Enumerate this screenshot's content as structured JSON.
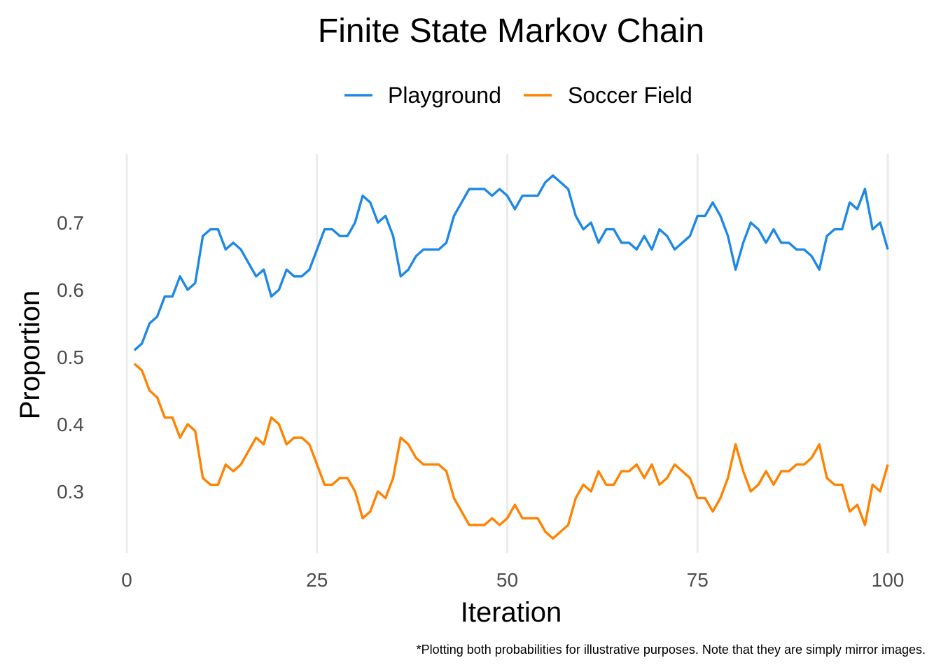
{
  "chart_data": {
    "type": "line",
    "title": "Finite State Markov Chain",
    "xlabel": "Iteration",
    "ylabel": "Proportion",
    "caption": "*Plotting both probabilities for illustrative purposes. Note that they are simply mirror images.",
    "xlim": [
      0,
      100
    ],
    "ylim": [
      0.21,
      0.79
    ],
    "xticks": [
      0,
      25,
      50,
      75,
      100
    ],
    "yticks": [
      0.3,
      0.4,
      0.5,
      0.6,
      0.7
    ],
    "xtick_labels": [
      "0",
      "25",
      "50",
      "75",
      "100"
    ],
    "ytick_labels": [
      "0.3",
      "0.4",
      "0.5",
      "0.6",
      "0.7"
    ],
    "grid": "vertical major lines",
    "legend_position": "top",
    "x": [
      1,
      2,
      3,
      4,
      5,
      6,
      7,
      8,
      9,
      10,
      11,
      12,
      13,
      14,
      15,
      16,
      17,
      18,
      19,
      20,
      21,
      22,
      23,
      24,
      25,
      26,
      27,
      28,
      29,
      30,
      31,
      32,
      33,
      34,
      35,
      36,
      37,
      38,
      39,
      40,
      41,
      42,
      43,
      44,
      45,
      46,
      47,
      48,
      49,
      50,
      51,
      52,
      53,
      54,
      55,
      56,
      57,
      58,
      59,
      60,
      61,
      62,
      63,
      64,
      65,
      66,
      67,
      68,
      69,
      70,
      71,
      72,
      73,
      74,
      75,
      76,
      77,
      78,
      79,
      80,
      81,
      82,
      83,
      84,
      85,
      86,
      87,
      88,
      89,
      90,
      91,
      92,
      93,
      94,
      95,
      96,
      97,
      98,
      99,
      100
    ],
    "series": [
      {
        "name": "Playground",
        "color": "#1E88E5",
        "values": [
          0.51,
          0.52,
          0.55,
          0.56,
          0.59,
          0.59,
          0.62,
          0.6,
          0.61,
          0.68,
          0.69,
          0.69,
          0.66,
          0.67,
          0.66,
          0.64,
          0.62,
          0.63,
          0.59,
          0.6,
          0.63,
          0.62,
          0.62,
          0.63,
          0.66,
          0.69,
          0.69,
          0.68,
          0.68,
          0.7,
          0.74,
          0.73,
          0.7,
          0.71,
          0.68,
          0.62,
          0.63,
          0.65,
          0.66,
          0.66,
          0.66,
          0.67,
          0.71,
          0.73,
          0.75,
          0.75,
          0.75,
          0.74,
          0.75,
          0.74,
          0.72,
          0.74,
          0.74,
          0.74,
          0.76,
          0.77,
          0.76,
          0.75,
          0.71,
          0.69,
          0.7,
          0.67,
          0.69,
          0.69,
          0.67,
          0.67,
          0.66,
          0.68,
          0.66,
          0.69,
          0.68,
          0.66,
          0.67,
          0.68,
          0.71,
          0.71,
          0.73,
          0.71,
          0.68,
          0.63,
          0.67,
          0.7,
          0.69,
          0.67,
          0.69,
          0.67,
          0.67,
          0.66,
          0.66,
          0.65,
          0.63,
          0.68,
          0.69,
          0.69,
          0.73,
          0.72,
          0.75,
          0.69,
          0.7,
          0.66
        ]
      },
      {
        "name": "Soccer Field",
        "color": "#FF8200",
        "values": [
          0.49,
          0.48,
          0.45,
          0.44,
          0.41,
          0.41,
          0.38,
          0.4,
          0.39,
          0.32,
          0.31,
          0.31,
          0.34,
          0.33,
          0.34,
          0.36,
          0.38,
          0.37,
          0.41,
          0.4,
          0.37,
          0.38,
          0.38,
          0.37,
          0.34,
          0.31,
          0.31,
          0.32,
          0.32,
          0.3,
          0.26,
          0.27,
          0.3,
          0.29,
          0.32,
          0.38,
          0.37,
          0.35,
          0.34,
          0.34,
          0.34,
          0.33,
          0.29,
          0.27,
          0.25,
          0.25,
          0.25,
          0.26,
          0.25,
          0.26,
          0.28,
          0.26,
          0.26,
          0.26,
          0.24,
          0.23,
          0.24,
          0.25,
          0.29,
          0.31,
          0.3,
          0.33,
          0.31,
          0.31,
          0.33,
          0.33,
          0.34,
          0.32,
          0.34,
          0.31,
          0.32,
          0.34,
          0.33,
          0.32,
          0.29,
          0.29,
          0.27,
          0.29,
          0.32,
          0.37,
          0.33,
          0.3,
          0.31,
          0.33,
          0.31,
          0.33,
          0.33,
          0.34,
          0.34,
          0.35,
          0.37,
          0.32,
          0.31,
          0.31,
          0.27,
          0.28,
          0.25,
          0.31,
          0.3,
          0.34
        ]
      }
    ]
  }
}
